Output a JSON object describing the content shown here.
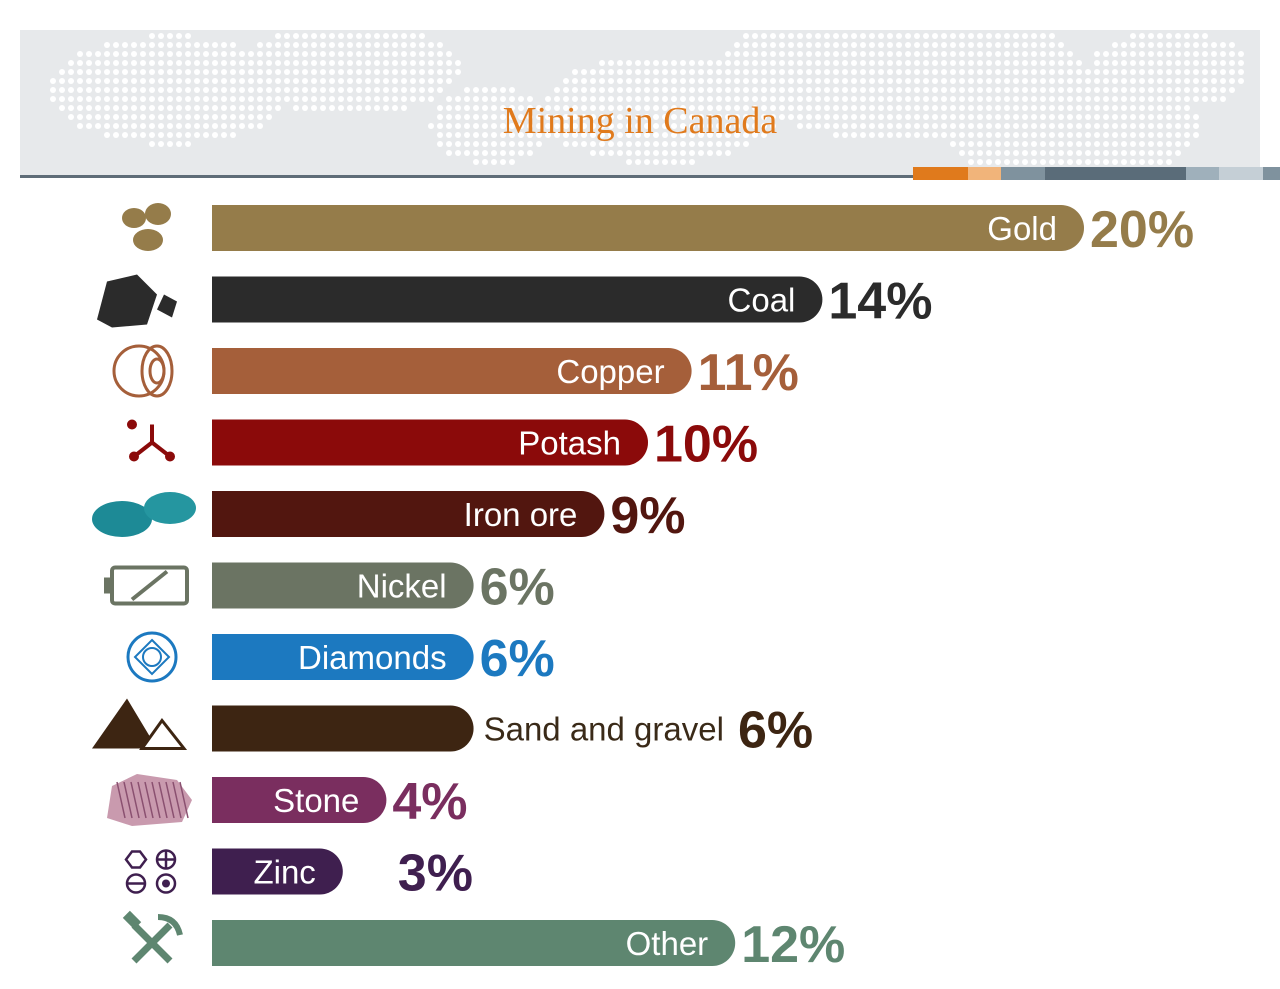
{
  "title": "Mining in Canada",
  "palette": {
    "title_color": "#e07a1c",
    "accent_strip": [
      "#e07a1c",
      "#f1b47a",
      "#7f929e",
      "#5a6c79",
      "#5a6c79",
      "#9fb0bb",
      "#c5cfd6",
      "#7f929e"
    ]
  },
  "chart_data": {
    "type": "bar",
    "orientation": "horizontal",
    "title": "Mining in Canada",
    "xlabel": "",
    "ylabel": "",
    "unit": "%",
    "categories": [
      "Gold",
      "Coal",
      "Copper",
      "Potash",
      "Iron ore",
      "Nickel",
      "Diamonds",
      "Sand and gravel",
      "Stone",
      "Zinc",
      "Other"
    ],
    "values": [
      20,
      14,
      11,
      10,
      9,
      6,
      6,
      6,
      4,
      3,
      12
    ],
    "value_labels": [
      "20%",
      "14%",
      "11%",
      "10%",
      "9%",
      "6%",
      "6%",
      "6%",
      "4%",
      "3%",
      "12%"
    ],
    "colors": [
      "#957c4a",
      "#2b2b2b",
      "#a55f3a",
      "#8b0a0a",
      "#52160f",
      "#6b7463",
      "#1c79c0",
      "#3d2512",
      "#7a2e5f",
      "#3f1f4f",
      "#5e8670"
    ],
    "value_colors": [
      "#957c4a",
      "#2b2b2b",
      "#a55f3a",
      "#8b0a0a",
      "#52160f",
      "#6b7463",
      "#1c79c0",
      "#3d2512",
      "#7a2e5f",
      "#3f1f4f",
      "#5e8670"
    ],
    "icons": [
      "gold-nuggets-icon",
      "coal-icon",
      "copper-coil-icon",
      "potash-molecule-icon",
      "iron-ore-icon",
      "nickel-battery-icon",
      "diamond-icon",
      "sand-gravel-icon",
      "stone-icon",
      "zinc-symbols-icon",
      "pickaxe-hammer-icon"
    ]
  }
}
